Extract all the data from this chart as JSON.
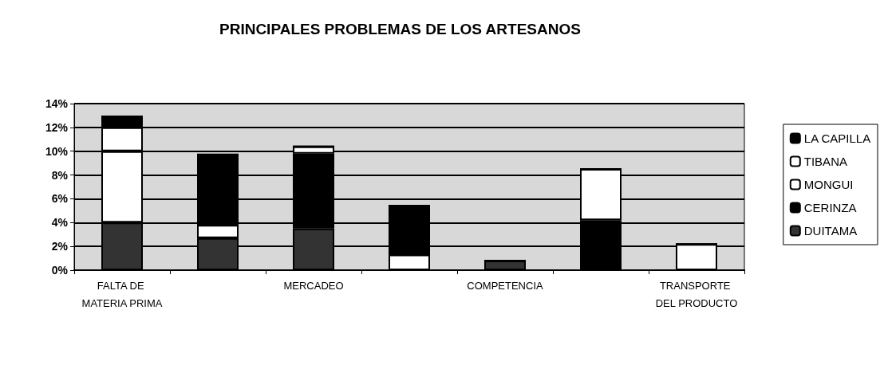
{
  "chart_data": {
    "type": "bar",
    "stacked": true,
    "title": "PRINCIPALES PROBLEMAS DE LOS ARTESANOS",
    "categories": [
      "FALTA DE MATERIA PRIMA",
      null,
      "MERCADEO",
      null,
      "COMPETENCIA",
      null,
      "TRANSPORTE DEL PRODUCTO"
    ],
    "series": [
      {
        "name": "DUITAMA",
        "color": "#333333",
        "values": [
          4,
          2.7,
          3.5,
          0,
          0.8,
          0,
          0
        ]
      },
      {
        "name": "CERINZA",
        "color": "#000000",
        "values": [
          0,
          0,
          6.3,
          0,
          0,
          4.2,
          0
        ]
      },
      {
        "name": "MONGUI",
        "color": "#ffffff",
        "values": [
          6,
          1.1,
          0.6,
          1.3,
          0,
          4.3,
          2.2
        ]
      },
      {
        "name": "TIBANA",
        "color": "#ffffff",
        "values": [
          2,
          0,
          0,
          0,
          0,
          0,
          0
        ]
      },
      {
        "name": "LA CAPILLA",
        "color": "#000000",
        "values": [
          1,
          6,
          0,
          4.2,
          0,
          0,
          0
        ]
      }
    ],
    "ylim": [
      0,
      14
    ],
    "yticks": [
      {
        "value": 0,
        "label": "0%"
      },
      {
        "value": 2,
        "label": "2%"
      },
      {
        "value": 4,
        "label": "4%"
      },
      {
        "value": 6,
        "label": "6%"
      },
      {
        "value": 8,
        "label": "8%"
      },
      {
        "value": 10,
        "label": "10%"
      },
      {
        "value": 12,
        "label": "12%"
      },
      {
        "value": 14,
        "label": "14%"
      }
    ],
    "grid": "y",
    "legend": "right"
  }
}
